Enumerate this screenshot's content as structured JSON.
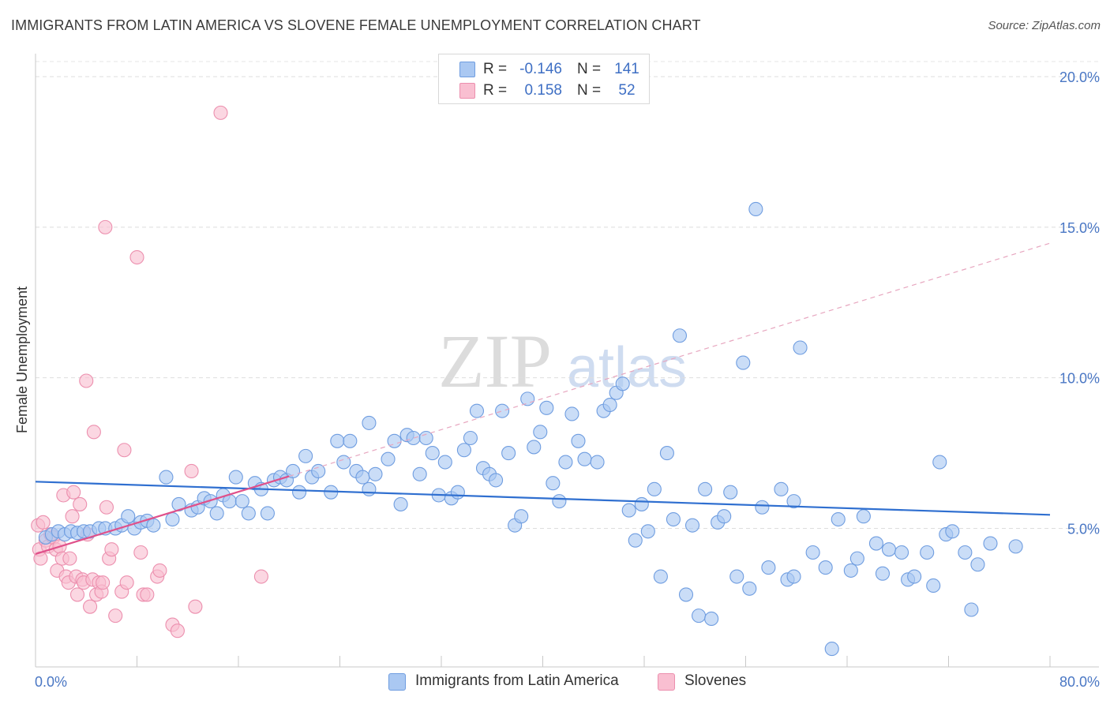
{
  "title": "IMMIGRANTS FROM LATIN AMERICA VS SLOVENE FEMALE UNEMPLOYMENT CORRELATION CHART",
  "source": "Source: ZipAtlas.com",
  "watermark": {
    "zip": "ZIP",
    "atlas": "atlas"
  },
  "legend": {
    "rows": [
      {
        "r_label": "R =",
        "r_value": "-0.146",
        "n_label": "N =",
        "n_value": "141",
        "color": "#aac8f2",
        "border": "#6f9de0"
      },
      {
        "r_label": "R =",
        "r_value": "0.158",
        "n_label": "N =",
        "n_value": "52",
        "color": "#f9bfd1",
        "border": "#ec8fae"
      }
    ]
  },
  "bottom_legend": [
    {
      "label": "Immigrants from Latin America",
      "color": "#aac8f2",
      "border": "#6f9de0"
    },
    {
      "label": "Slovenes",
      "color": "#f9bfd1",
      "border": "#ec8fae"
    }
  ],
  "chart_data": {
    "type": "scatter",
    "title": "IMMIGRANTS FROM LATIN AMERICA VS SLOVENE FEMALE UNEMPLOYMENT CORRELATION CHART",
    "xlabel": "",
    "ylabel": "Female Unemployment",
    "xlim": [
      0,
      80
    ],
    "ylim": [
      0.4,
      20.5
    ],
    "x_tick_labels": [
      {
        "value": 0,
        "label": "0.0%"
      },
      {
        "value": 80,
        "label": "80.0%"
      }
    ],
    "y_tick_labels": [
      {
        "value": 5,
        "label": "5.0%"
      },
      {
        "value": 10,
        "label": "10.0%"
      },
      {
        "value": 15,
        "label": "15.0%"
      },
      {
        "value": 20,
        "label": "20.0%"
      }
    ],
    "x_minor_ticks": [
      0,
      8,
      16,
      24,
      32,
      40,
      48,
      56,
      64,
      72,
      80
    ],
    "grid": "horizontal dashed",
    "legend_position": "top-center",
    "series": [
      {
        "name": "Immigrants from Latin America",
        "color": "#aac8f2",
        "stroke": "#6f9de0",
        "trend": {
          "type": "solid",
          "color": "#2f6fd0",
          "x": [
            0,
            80
          ],
          "y": [
            6.55,
            5.45
          ]
        },
        "points": [
          [
            0.8,
            4.7
          ],
          [
            1.3,
            4.8
          ],
          [
            1.8,
            4.9
          ],
          [
            2.3,
            4.8
          ],
          [
            2.8,
            4.9
          ],
          [
            3.3,
            4.85
          ],
          [
            3.8,
            4.9
          ],
          [
            4.3,
            4.9
          ],
          [
            5.0,
            5.0
          ],
          [
            5.5,
            5.0
          ],
          [
            6.3,
            5.0
          ],
          [
            6.8,
            5.1
          ],
          [
            7.3,
            5.4
          ],
          [
            7.8,
            5.0
          ],
          [
            8.3,
            5.2
          ],
          [
            8.8,
            5.25
          ],
          [
            9.3,
            5.1
          ],
          [
            10.3,
            6.7
          ],
          [
            10.8,
            5.3
          ],
          [
            11.3,
            5.8
          ],
          [
            12.3,
            5.6
          ],
          [
            12.8,
            5.7
          ],
          [
            13.3,
            6.0
          ],
          [
            13.8,
            5.9
          ],
          [
            14.3,
            5.5
          ],
          [
            14.8,
            6.1
          ],
          [
            15.3,
            5.9
          ],
          [
            15.8,
            6.7
          ],
          [
            16.3,
            5.9
          ],
          [
            16.8,
            5.5
          ],
          [
            17.3,
            6.5
          ],
          [
            17.8,
            6.3
          ],
          [
            18.3,
            5.5
          ],
          [
            18.8,
            6.6
          ],
          [
            19.3,
            6.7
          ],
          [
            19.8,
            6.6
          ],
          [
            20.3,
            6.9
          ],
          [
            20.8,
            6.2
          ],
          [
            21.3,
            7.4
          ],
          [
            21.8,
            6.7
          ],
          [
            22.3,
            6.9
          ],
          [
            23.3,
            6.2
          ],
          [
            23.8,
            7.9
          ],
          [
            24.3,
            7.2
          ],
          [
            24.8,
            7.9
          ],
          [
            25.3,
            6.9
          ],
          [
            25.8,
            6.7
          ],
          [
            26.3,
            8.5
          ],
          [
            26.3,
            6.3
          ],
          [
            26.8,
            6.8
          ],
          [
            27.8,
            7.3
          ],
          [
            28.3,
            7.9
          ],
          [
            28.8,
            5.8
          ],
          [
            29.3,
            8.1
          ],
          [
            29.8,
            8.0
          ],
          [
            30.3,
            6.8
          ],
          [
            30.8,
            8.0
          ],
          [
            31.3,
            7.5
          ],
          [
            31.8,
            6.1
          ],
          [
            32.3,
            7.2
          ],
          [
            32.8,
            6.0
          ],
          [
            33.3,
            6.2
          ],
          [
            33.8,
            7.6
          ],
          [
            34.3,
            8.0
          ],
          [
            34.8,
            8.9
          ],
          [
            35.3,
            7.0
          ],
          [
            35.8,
            6.8
          ],
          [
            36.3,
            6.6
          ],
          [
            36.8,
            8.9
          ],
          [
            37.3,
            7.5
          ],
          [
            37.8,
            5.1
          ],
          [
            38.3,
            5.4
          ],
          [
            38.8,
            9.3
          ],
          [
            39.3,
            7.7
          ],
          [
            39.8,
            8.2
          ],
          [
            40.3,
            9.0
          ],
          [
            40.8,
            6.5
          ],
          [
            41.3,
            5.9
          ],
          [
            41.8,
            7.2
          ],
          [
            42.3,
            8.8
          ],
          [
            42.8,
            7.9
          ],
          [
            43.3,
            7.3
          ],
          [
            44.3,
            7.2
          ],
          [
            44.8,
            8.9
          ],
          [
            45.3,
            9.1
          ],
          [
            45.8,
            9.5
          ],
          [
            46.3,
            9.8
          ],
          [
            46.8,
            5.6
          ],
          [
            47.3,
            4.6
          ],
          [
            47.8,
            5.8
          ],
          [
            48.3,
            4.9
          ],
          [
            48.8,
            6.3
          ],
          [
            49.3,
            3.4
          ],
          [
            49.8,
            7.5
          ],
          [
            50.3,
            5.3
          ],
          [
            50.8,
            11.4
          ],
          [
            51.3,
            2.8
          ],
          [
            51.8,
            5.1
          ],
          [
            52.3,
            2.1
          ],
          [
            52.8,
            6.3
          ],
          [
            53.3,
            2.0
          ],
          [
            53.8,
            5.2
          ],
          [
            54.3,
            5.4
          ],
          [
            54.8,
            6.2
          ],
          [
            55.3,
            3.4
          ],
          [
            55.8,
            10.5
          ],
          [
            56.3,
            3.0
          ],
          [
            56.8,
            15.6
          ],
          [
            57.3,
            5.7
          ],
          [
            57.8,
            3.7
          ],
          [
            58.8,
            6.3
          ],
          [
            59.3,
            3.3
          ],
          [
            59.8,
            3.4
          ],
          [
            59.8,
            5.9
          ],
          [
            60.3,
            11.0
          ],
          [
            61.3,
            4.2
          ],
          [
            62.3,
            3.7
          ],
          [
            62.8,
            1.0
          ],
          [
            63.3,
            5.3
          ],
          [
            64.3,
            3.6
          ],
          [
            64.8,
            4.0
          ],
          [
            65.3,
            5.4
          ],
          [
            66.3,
            4.5
          ],
          [
            66.8,
            3.5
          ],
          [
            67.3,
            4.3
          ],
          [
            68.3,
            4.2
          ],
          [
            68.8,
            3.3
          ],
          [
            69.3,
            3.4
          ],
          [
            70.3,
            4.2
          ],
          [
            70.8,
            3.1
          ],
          [
            71.3,
            7.2
          ],
          [
            71.8,
            4.8
          ],
          [
            72.3,
            4.9
          ],
          [
            73.3,
            4.2
          ],
          [
            73.8,
            2.3
          ],
          [
            74.3,
            3.8
          ],
          [
            75.3,
            4.5
          ],
          [
            77.3,
            4.4
          ]
        ]
      },
      {
        "name": "Slovenes",
        "color": "#f9bfd1",
        "stroke": "#ec8fae",
        "trend": {
          "type": "solid+dashed",
          "color": "#e0508a",
          "solid_x": [
            0,
            20
          ],
          "dashed_x": [
            20,
            80
          ],
          "intercept": 4.15,
          "slope": 0.129
        },
        "points": [
          [
            0.2,
            5.1
          ],
          [
            0.3,
            4.3
          ],
          [
            0.4,
            4.0
          ],
          [
            0.6,
            5.2
          ],
          [
            0.8,
            4.6
          ],
          [
            1.0,
            4.4
          ],
          [
            1.2,
            4.8
          ],
          [
            1.4,
            4.7
          ],
          [
            1.6,
            4.3
          ],
          [
            1.7,
            3.6
          ],
          [
            1.9,
            4.4
          ],
          [
            2.1,
            4.0
          ],
          [
            2.2,
            6.1
          ],
          [
            2.4,
            3.4
          ],
          [
            2.6,
            3.2
          ],
          [
            2.7,
            4.0
          ],
          [
            2.9,
            5.4
          ],
          [
            3.0,
            6.2
          ],
          [
            3.2,
            3.4
          ],
          [
            3.3,
            2.8
          ],
          [
            3.5,
            5.8
          ],
          [
            3.7,
            3.3
          ],
          [
            3.8,
            3.2
          ],
          [
            4.0,
            9.9
          ],
          [
            4.1,
            4.8
          ],
          [
            4.3,
            2.4
          ],
          [
            4.5,
            3.3
          ],
          [
            4.6,
            8.2
          ],
          [
            4.8,
            2.8
          ],
          [
            5.0,
            3.2
          ],
          [
            5.2,
            2.9
          ],
          [
            5.3,
            3.2
          ],
          [
            5.5,
            15.0
          ],
          [
            5.6,
            5.7
          ],
          [
            5.8,
            4.0
          ],
          [
            6.0,
            4.3
          ],
          [
            6.3,
            2.1
          ],
          [
            6.8,
            2.9
          ],
          [
            7.0,
            7.6
          ],
          [
            7.2,
            3.2
          ],
          [
            8.0,
            14.0
          ],
          [
            8.3,
            4.2
          ],
          [
            8.5,
            2.8
          ],
          [
            8.8,
            2.8
          ],
          [
            9.6,
            3.4
          ],
          [
            9.8,
            3.6
          ],
          [
            10.8,
            1.8
          ],
          [
            11.2,
            1.6
          ],
          [
            12.3,
            6.9
          ],
          [
            12.6,
            2.4
          ],
          [
            14.6,
            18.8
          ],
          [
            17.8,
            3.4
          ]
        ]
      }
    ]
  }
}
